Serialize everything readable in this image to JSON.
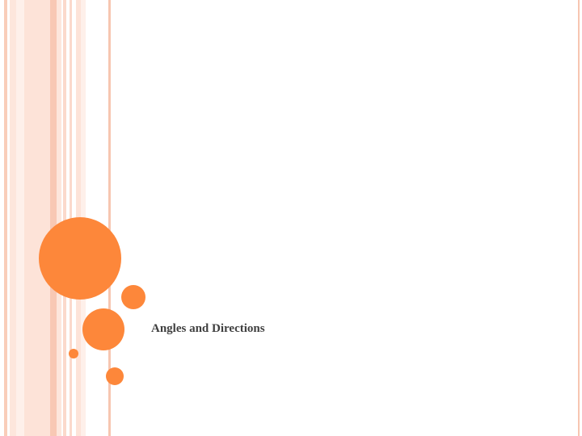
{
  "slide": {
    "title": "Angles and Directions"
  }
}
